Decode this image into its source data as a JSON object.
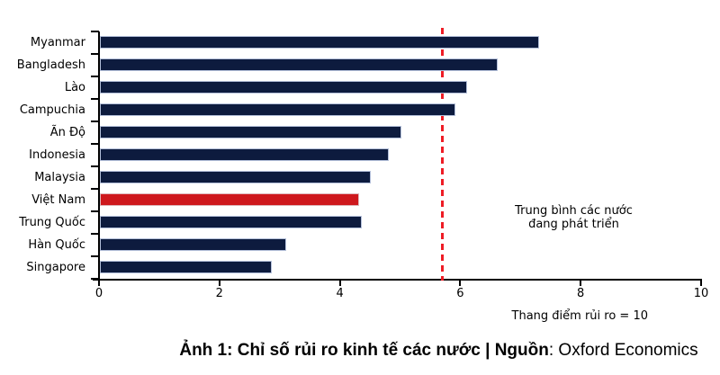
{
  "figure": {
    "caption_bold": "Ảnh 1: Chỉ số rủi ro kinh tế các nước | Nguồn",
    "caption_regular": ": Oxford Economics"
  },
  "chart_data": {
    "type": "bar",
    "orientation": "horizontal",
    "title": "",
    "categories": [
      "Myanmar",
      "Bangladesh",
      "Lào",
      "Campuchia",
      "Ãn Độ",
      "Indonesia",
      "Malaysia",
      "Việt Nam",
      "Trung Quốc",
      "Hàn Quốc",
      "Singapore"
    ],
    "values": [
      7.3,
      6.6,
      6.1,
      5.9,
      5.0,
      4.8,
      4.5,
      4.3,
      4.35,
      3.1,
      2.85
    ],
    "highlight": {
      "category": "Việt Nam",
      "index": 7
    },
    "xlim": [
      0,
      10
    ],
    "xtick_values": [
      0,
      2,
      4,
      6,
      8,
      10
    ],
    "reference_line": {
      "value": 5.7,
      "label_line1": "Trung bình các nước",
      "label_line2": "đang phát triển"
    },
    "scale_note": "Thang điểm rủi ro = 10",
    "colors": {
      "bar": "#0d1b3e",
      "bar_border": "#b3bfd9",
      "highlight_bar": "#ce181d",
      "highlight_border": "#ddb7bb",
      "reference_line": "#ee1c25",
      "axis": "#000000"
    },
    "grid": false,
    "legend": null
  }
}
